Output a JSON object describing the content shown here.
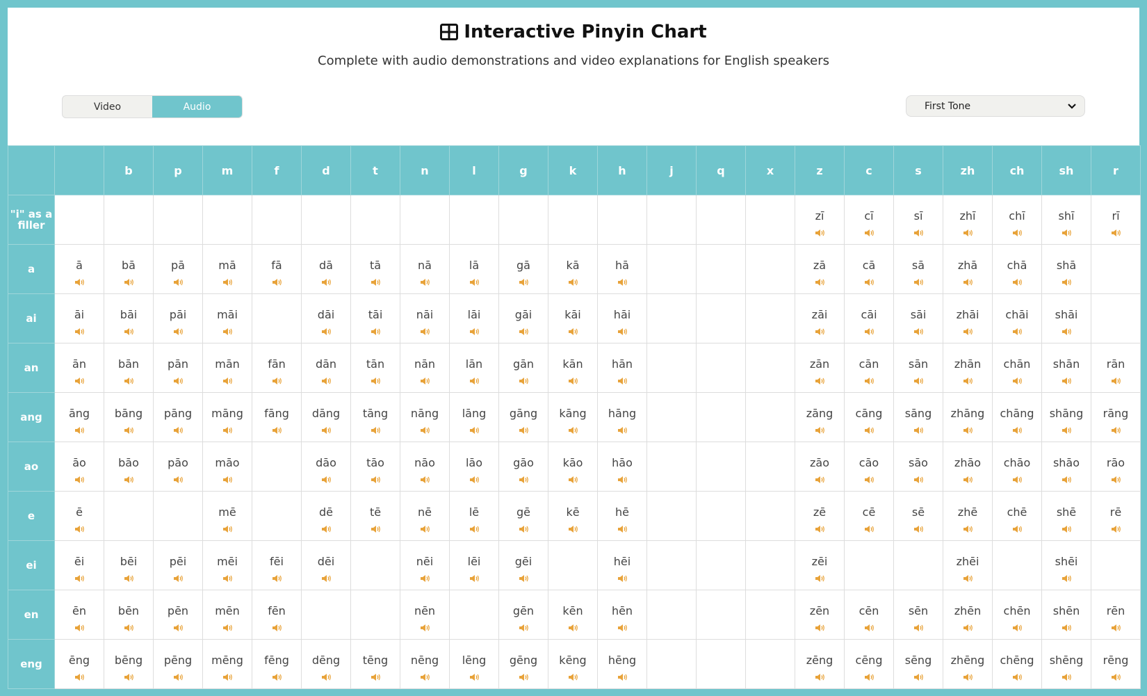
{
  "header": {
    "title": "Interactive Pinyin Chart",
    "title_icon": "grid-icon",
    "subtitle": "Complete with audio demonstrations and video explanations for English speakers",
    "mode_toggle": {
      "options": [
        "Video",
        "Audio"
      ],
      "selected": "Audio"
    },
    "tone_select": {
      "value": "First Tone"
    }
  },
  "colors": {
    "accent": "#70c5cc",
    "speaker": "#e8a33a",
    "text": "#444444"
  },
  "chart": {
    "initials": [
      "",
      "b",
      "p",
      "m",
      "f",
      "d",
      "t",
      "n",
      "l",
      "g",
      "k",
      "h",
      "j",
      "q",
      "x",
      "z",
      "c",
      "s",
      "zh",
      "ch",
      "sh",
      "r"
    ],
    "rows": [
      {
        "final": "\"i\" as a filler",
        "cells": [
          "",
          "",
          "",
          "",
          "",
          "",
          "",
          "",
          "",
          "",
          "",
          "",
          "",
          "",
          "",
          "zī",
          "cī",
          "sī",
          "zhī",
          "chī",
          "shī",
          "rī"
        ]
      },
      {
        "final": "a",
        "cells": [
          "ā",
          "bā",
          "pā",
          "mā",
          "fā",
          "dā",
          "tā",
          "nā",
          "lā",
          "gā",
          "kā",
          "hā",
          "",
          "",
          "",
          "zā",
          "cā",
          "sā",
          "zhā",
          "chā",
          "shā",
          ""
        ]
      },
      {
        "final": "ai",
        "cells": [
          "āi",
          "bāi",
          "pāi",
          "māi",
          "",
          "dāi",
          "tāi",
          "nāi",
          "lāi",
          "gāi",
          "kāi",
          "hāi",
          "",
          "",
          "",
          "zāi",
          "cāi",
          "sāi",
          "zhāi",
          "chāi",
          "shāi",
          ""
        ]
      },
      {
        "final": "an",
        "cells": [
          "ān",
          "bān",
          "pān",
          "mān",
          "fān",
          "dān",
          "tān",
          "nān",
          "lān",
          "gān",
          "kān",
          "hān",
          "",
          "",
          "",
          "zān",
          "cān",
          "sān",
          "zhān",
          "chān",
          "shān",
          "rān"
        ]
      },
      {
        "final": "ang",
        "cells": [
          "āng",
          "bāng",
          "pāng",
          "māng",
          "fāng",
          "dāng",
          "tāng",
          "nāng",
          "lāng",
          "gāng",
          "kāng",
          "hāng",
          "",
          "",
          "",
          "zāng",
          "cāng",
          "sāng",
          "zhāng",
          "chāng",
          "shāng",
          "rāng"
        ]
      },
      {
        "final": "ao",
        "cells": [
          "āo",
          "bāo",
          "pāo",
          "māo",
          "",
          "dāo",
          "tāo",
          "nāo",
          "lāo",
          "gāo",
          "kāo",
          "hāo",
          "",
          "",
          "",
          "zāo",
          "cāo",
          "sāo",
          "zhāo",
          "chāo",
          "shāo",
          "rāo"
        ]
      },
      {
        "final": "e",
        "cells": [
          "ē",
          "",
          "",
          "mē",
          "",
          "dē",
          "tē",
          "nē",
          "lē",
          "gē",
          "kē",
          "hē",
          "",
          "",
          "",
          "zē",
          "cē",
          "sē",
          "zhē",
          "chē",
          "shē",
          "rē"
        ]
      },
      {
        "final": "ei",
        "cells": [
          "ēi",
          "bēi",
          "pēi",
          "mēi",
          "fēi",
          "dēi",
          "",
          "nēi",
          "lēi",
          "gēi",
          "",
          "hēi",
          "",
          "",
          "",
          "zēi",
          "",
          "",
          "zhēi",
          "",
          "shēi",
          ""
        ]
      },
      {
        "final": "en",
        "cells": [
          "ēn",
          "bēn",
          "pēn",
          "mēn",
          "fēn",
          "",
          "",
          "nēn",
          "",
          "gēn",
          "kēn",
          "hēn",
          "",
          "",
          "",
          "zēn",
          "cēn",
          "sēn",
          "zhēn",
          "chēn",
          "shēn",
          "rēn"
        ]
      },
      {
        "final": "eng",
        "cells": [
          "ēng",
          "bēng",
          "pēng",
          "mēng",
          "fēng",
          "dēng",
          "tēng",
          "nēng",
          "lēng",
          "gēng",
          "kēng",
          "hēng",
          "",
          "",
          "",
          "zēng",
          "cēng",
          "sēng",
          "zhēng",
          "chēng",
          "shēng",
          "rēng"
        ]
      }
    ]
  }
}
